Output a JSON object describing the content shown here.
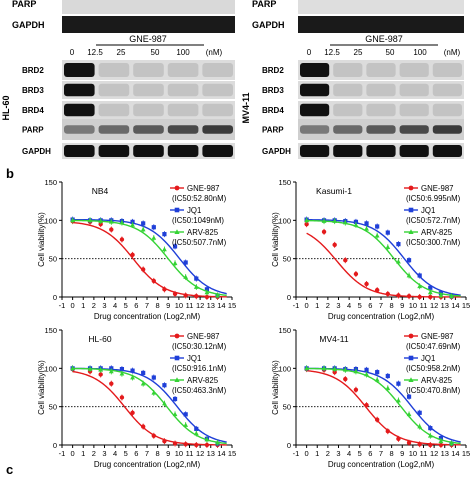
{
  "labels": {
    "panel_b": "b",
    "panel_c": "c",
    "parp_clipped_left": "PARP",
    "parp_clipped_right": "PARP",
    "gapdh_top": "GAPDH",
    "drug": "GNE-987",
    "doses": [
      "0",
      "12.5",
      "25",
      "50",
      "100",
      "(nM)"
    ],
    "rows": [
      "BRD2",
      "BRD3",
      "BRD4",
      "PARP",
      "GAPDH"
    ],
    "cell_lines": [
      "HL-60",
      "MV4-11"
    ]
  },
  "colors": {
    "GNE-987": "#e41a1c",
    "JQ1": "#1f3fd8",
    "ARV-825": "#35d335"
  },
  "chart_data": [
    {
      "type": "scatter",
      "title": "NB4",
      "xlabel": "Drug concentration (Log2,nM)",
      "ylabel": "Cell viability(%)",
      "xticks": [
        "-1",
        "0",
        "1",
        "2",
        "3",
        "4",
        "5",
        "6",
        "7",
        "8",
        "9",
        "10",
        "11",
        "12",
        "13",
        "14",
        "15"
      ],
      "yticks": [
        "0",
        "50",
        "100",
        "150"
      ],
      "xlim": [
        -1,
        15
      ],
      "ylim": [
        0,
        150
      ],
      "reference_line_y": 50,
      "x": [
        0,
        1.64,
        2.64,
        3.64,
        4.64,
        5.64,
        6.64,
        7.64,
        8.64,
        9.64,
        10.64,
        11.64,
        12.64,
        13.64
      ],
      "series": [
        {
          "name": "GNE-987",
          "label": "(IC50:52.80nM)",
          "ic50_log2": 5.72,
          "values": [
            99,
            98,
            95,
            88,
            75,
            55,
            36,
            21,
            10,
            4,
            2,
            1,
            0,
            0
          ]
        },
        {
          "name": "JQ1",
          "label": "(IC50:1049nM)",
          "ic50_log2": 10.04,
          "values": [
            101,
            100,
            100,
            100,
            99,
            98,
            96,
            91,
            82,
            66,
            45,
            24,
            10,
            2
          ]
        },
        {
          "name": "ARV-825",
          "label": "(IC50:507.7nM)",
          "ic50_log2": 8.99,
          "values": [
            100,
            100,
            99,
            98,
            97,
            94,
            88,
            77,
            62,
            44,
            26,
            13,
            6,
            2
          ]
        }
      ]
    },
    {
      "type": "scatter",
      "title": "Kasumi-1",
      "xlabel": "Drug concentration (Log2,nM)",
      "ylabel": "Cell viability(%)",
      "xticks": [
        "-1",
        "0",
        "1",
        "2",
        "3",
        "4",
        "5",
        "6",
        "7",
        "8",
        "9",
        "10",
        "11",
        "12",
        "13",
        "14",
        "15"
      ],
      "yticks": [
        "0",
        "50",
        "100",
        "150"
      ],
      "xlim": [
        -1,
        15
      ],
      "ylim": [
        0,
        150
      ],
      "reference_line_y": 50,
      "x": [
        0,
        1.64,
        2.64,
        3.64,
        4.64,
        5.64,
        6.64,
        7.64,
        8.64,
        9.64,
        10.64,
        11.64,
        12.64,
        13.64
      ],
      "series": [
        {
          "name": "GNE-987",
          "label": "(IC50:6.995nM)",
          "ic50_log2": 2.81,
          "values": [
            95,
            85,
            68,
            48,
            30,
            17,
            9,
            4,
            2,
            1,
            0,
            0,
            0,
            0
          ]
        },
        {
          "name": "JQ1",
          "label": "(IC50:572.7nM)",
          "ic50_log2": 9.16,
          "values": [
            101,
            100,
            100,
            99,
            98,
            96,
            92,
            84,
            69,
            48,
            28,
            12,
            5,
            1
          ]
        },
        {
          "name": "ARV-825",
          "label": "(IC50:300.7nM)",
          "ic50_log2": 8.23,
          "values": [
            100,
            99,
            99,
            97,
            94,
            89,
            80,
            65,
            46,
            28,
            14,
            6,
            2,
            1
          ]
        }
      ]
    },
    {
      "type": "scatter",
      "title": "HL-60",
      "xlabel": "Drug concentration (Log2,nM)",
      "ylabel": "Cell viability(%)",
      "xticks": [
        "-1",
        "0",
        "1",
        "2",
        "3",
        "4",
        "5",
        "6",
        "7",
        "8",
        "9",
        "10",
        "11",
        "12",
        "13",
        "14",
        "15"
      ],
      "yticks": [
        "0",
        "50",
        "100",
        "150"
      ],
      "xlim": [
        -1,
        15
      ],
      "ylim": [
        0,
        150
      ],
      "reference_line_y": 50,
      "x": [
        0,
        1.64,
        2.64,
        3.64,
        4.64,
        5.64,
        6.64,
        7.64,
        8.64,
        9.64,
        10.64,
        11.64,
        12.64,
        13.64
      ],
      "series": [
        {
          "name": "GNE-987",
          "label": "(IC50:30.12nM)",
          "ic50_log2": 4.91,
          "values": [
            99,
            96,
            92,
            80,
            62,
            42,
            24,
            12,
            5,
            2,
            1,
            0,
            0,
            0
          ]
        },
        {
          "name": "JQ1",
          "label": "(IC50:916.1nM)",
          "ic50_log2": 9.84,
          "values": [
            100,
            100,
            100,
            100,
            99,
            97,
            94,
            88,
            78,
            60,
            40,
            21,
            8,
            2
          ]
        },
        {
          "name": "ARV-825",
          "label": "(IC50:463.3nM)",
          "ic50_log2": 8.86,
          "values": [
            100,
            99,
            98,
            96,
            93,
            88,
            80,
            68,
            54,
            40,
            26,
            15,
            7,
            3
          ]
        }
      ]
    },
    {
      "type": "scatter",
      "title": "MV4-11",
      "xlabel": "Drug concentration (Log2,nM)",
      "ylabel": "Cell viability(%)",
      "xticks": [
        "-1",
        "0",
        "1",
        "2",
        "3",
        "4",
        "5",
        "6",
        "7",
        "8",
        "9",
        "10",
        "11",
        "12",
        "13",
        "14",
        "15"
      ],
      "yticks": [
        "0",
        "50",
        "100",
        "150"
      ],
      "xlim": [
        -1,
        15
      ],
      "ylim": [
        0,
        150
      ],
      "reference_line_y": 50,
      "x": [
        0,
        1.64,
        2.64,
        3.64,
        4.64,
        5.64,
        6.64,
        7.64,
        8.64,
        9.64,
        10.64,
        11.64,
        12.64,
        13.64
      ],
      "series": [
        {
          "name": "GNE-987",
          "label": "(IC50:47.69nM)",
          "ic50_log2": 5.58,
          "values": [
            99,
            98,
            95,
            86,
            72,
            52,
            33,
            18,
            8,
            3,
            1,
            0,
            0,
            0
          ]
        },
        {
          "name": "JQ1",
          "label": "(IC50:958.2nM)",
          "ic50_log2": 9.9,
          "values": [
            100,
            100,
            100,
            99,
            99,
            98,
            95,
            90,
            80,
            63,
            42,
            22,
            9,
            2
          ]
        },
        {
          "name": "ARV-825",
          "label": "(IC50:470.8nM)",
          "ic50_log2": 8.88,
          "values": [
            100,
            100,
            99,
            98,
            96,
            92,
            85,
            74,
            58,
            40,
            24,
            12,
            5,
            2
          ]
        }
      ]
    }
  ]
}
